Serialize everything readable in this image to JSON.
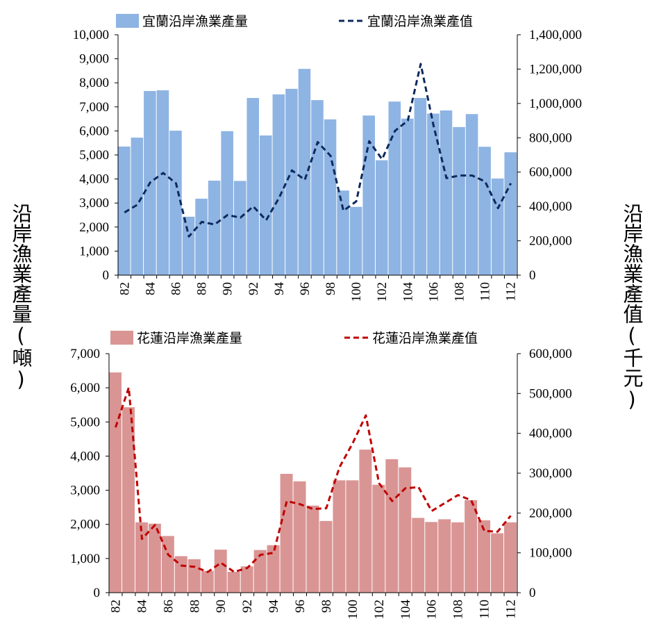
{
  "y_axis_left_label": "沿岸漁業產量(噸)",
  "y_axis_right_label": "沿岸漁業產值(千元)",
  "chart_data": [
    {
      "type": "bar",
      "name": "yilan",
      "legend": {
        "bar": "宜蘭沿岸漁業產量",
        "line": "宜蘭沿岸漁業產值"
      },
      "colors": {
        "bar": "#8eb4e3",
        "line": "#0d2a5c"
      },
      "x": [
        82,
        83,
        84,
        85,
        86,
        87,
        88,
        89,
        90,
        91,
        92,
        93,
        94,
        95,
        96,
        97,
        98,
        99,
        100,
        101,
        102,
        103,
        104,
        105,
        106,
        107,
        108,
        109,
        110,
        111,
        112
      ],
      "x_tick_labels": [
        "82",
        "84",
        "86",
        "88",
        "90",
        "92",
        "94",
        "96",
        "98",
        "100",
        "102",
        "104",
        "106",
        "108",
        "110",
        "112"
      ],
      "series": [
        {
          "name": "宜蘭沿岸漁業產量",
          "axis": "left",
          "kind": "bar",
          "values": [
            5350,
            5720,
            7660,
            7690,
            6010,
            2430,
            3180,
            3930,
            5990,
            3920,
            7370,
            5810,
            7520,
            7750,
            8580,
            7280,
            6480,
            3520,
            2840,
            6640,
            4780,
            7220,
            6510,
            7370,
            6720,
            6850,
            6160,
            6700,
            5340,
            4020,
            5110
          ]
        },
        {
          "name": "宜蘭沿岸漁業產值",
          "axis": "right",
          "kind": "line-dashed",
          "values": [
            365000,
            410000,
            540000,
            595000,
            535000,
            225000,
            310000,
            295000,
            350000,
            335000,
            400000,
            320000,
            450000,
            610000,
            555000,
            775000,
            695000,
            375000,
            430000,
            780000,
            675000,
            840000,
            900000,
            1230000,
            870000,
            565000,
            580000,
            580000,
            545000,
            390000,
            535000
          ]
        }
      ],
      "y_left": {
        "min": 0,
        "max": 10000,
        "ticks": [
          "0",
          "1,000",
          "2,000",
          "3,000",
          "4,000",
          "5,000",
          "6,000",
          "7,000",
          "8,000",
          "9,000",
          "10,000"
        ]
      },
      "y_right": {
        "min": 0,
        "max": 1400000,
        "ticks": [
          "0",
          "200,000",
          "400,000",
          "600,000",
          "800,000",
          "1,000,000",
          "1,200,000",
          "1,400,000"
        ]
      }
    },
    {
      "type": "bar",
      "name": "hualien",
      "legend": {
        "bar": "花蓮沿岸漁業產量",
        "line": "花蓮沿岸漁業產值"
      },
      "colors": {
        "bar": "#d99594",
        "line": "#c00000"
      },
      "x": [
        82,
        83,
        84,
        85,
        86,
        87,
        88,
        89,
        90,
        91,
        92,
        93,
        94,
        95,
        96,
        97,
        98,
        99,
        100,
        101,
        102,
        103,
        104,
        105,
        106,
        107,
        108,
        109,
        110,
        111,
        112
      ],
      "x_tick_labels": [
        "82",
        "84",
        "86",
        "88",
        "90",
        "92",
        "94",
        "96",
        "98",
        "100",
        "102",
        "104",
        "106",
        "108",
        "110",
        "112"
      ],
      "series": [
        {
          "name": "花蓮沿岸漁業產量",
          "axis": "left",
          "kind": "bar",
          "values": [
            6450,
            5430,
            2060,
            2020,
            1660,
            1070,
            980,
            640,
            1260,
            610,
            770,
            1250,
            1390,
            3480,
            3260,
            2550,
            2100,
            3290,
            3290,
            4190,
            3160,
            3910,
            3670,
            2190,
            2070,
            2150,
            2060,
            2710,
            2120,
            1740,
            2060
          ]
        },
        {
          "name": "花蓮沿岸漁業產值",
          "axis": "right",
          "kind": "line-dashed",
          "values": [
            415000,
            515000,
            135000,
            170000,
            95000,
            68000,
            65000,
            52000,
            75000,
            52000,
            62000,
            95000,
            100000,
            230000,
            222000,
            210000,
            212000,
            315000,
            375000,
            445000,
            275000,
            230000,
            262000,
            265000,
            205000,
            225000,
            245000,
            232000,
            155000,
            153000,
            193000
          ]
        }
      ],
      "y_left": {
        "min": 0,
        "max": 7000,
        "ticks": [
          "0",
          "1,000",
          "2,000",
          "3,000",
          "4,000",
          "5,000",
          "6,000",
          "7,000"
        ]
      },
      "y_right": {
        "min": 0,
        "max": 600000,
        "ticks": [
          "0",
          "100,000",
          "200,000",
          "300,000",
          "400,000",
          "500,000",
          "600,000"
        ]
      }
    }
  ]
}
